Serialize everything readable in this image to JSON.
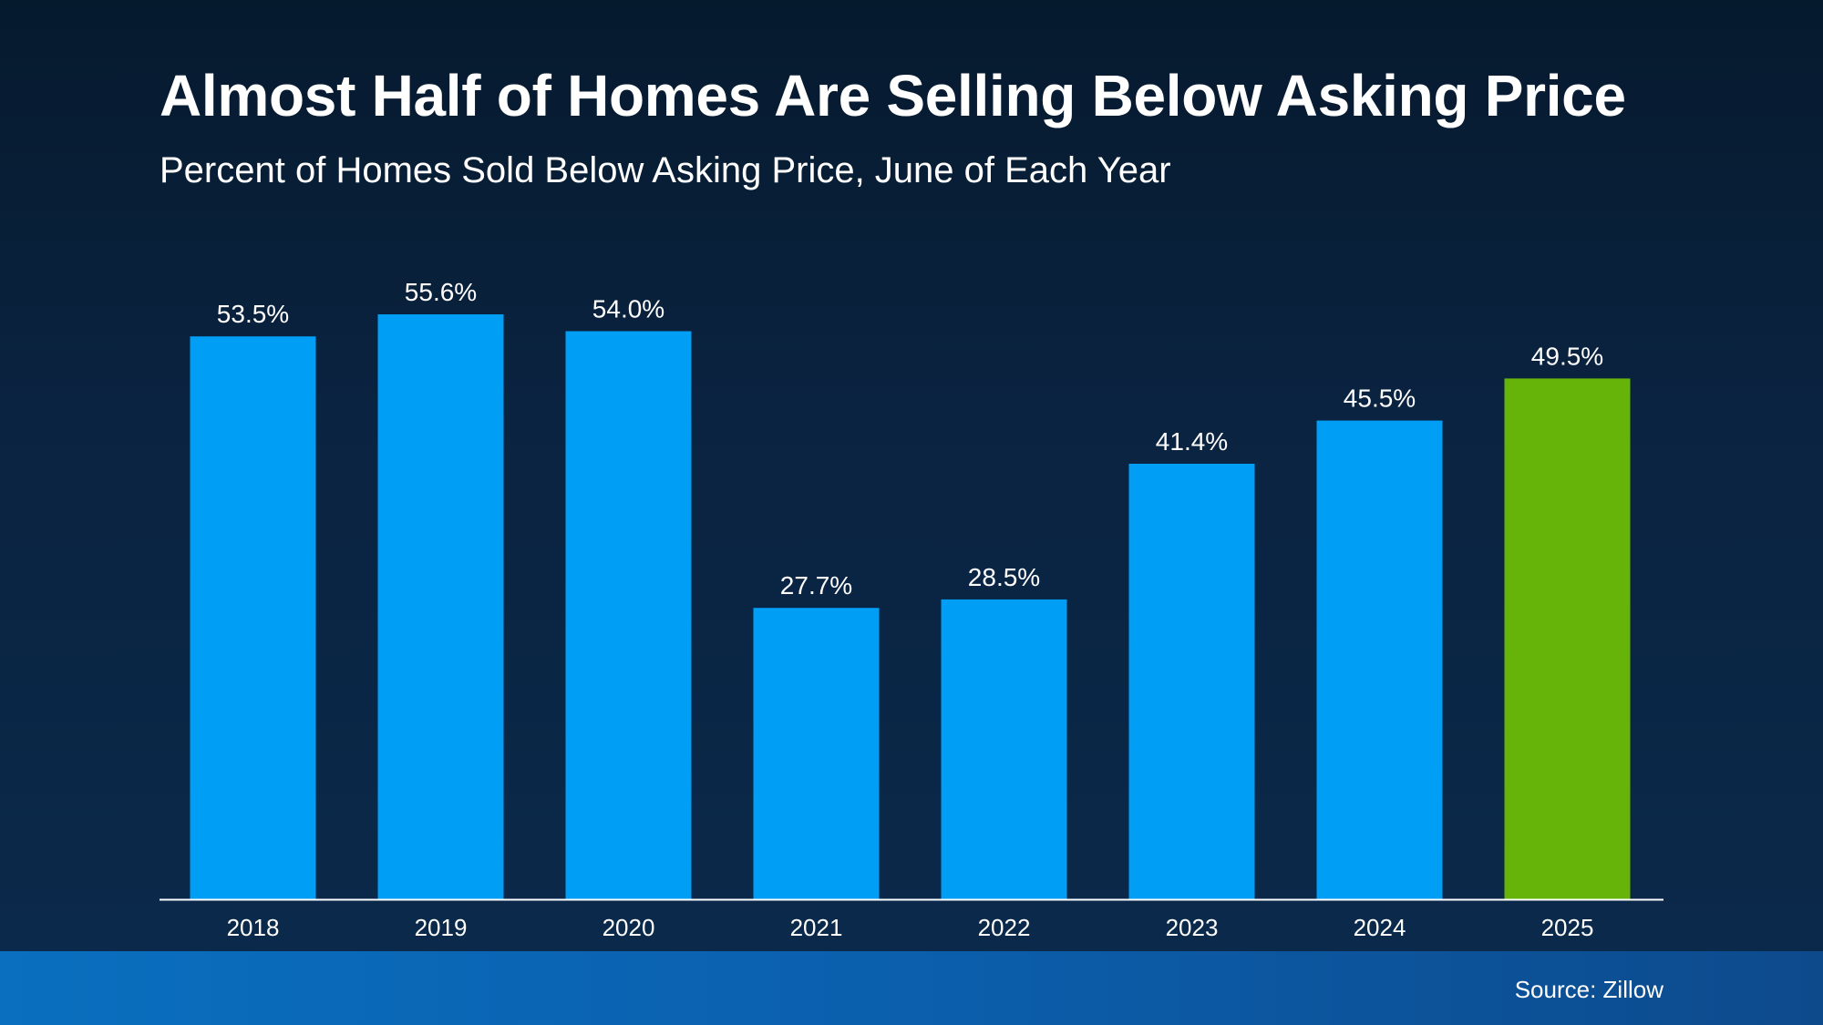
{
  "title": "Almost Half of Homes Are Selling Below Asking Price",
  "subtitle": "Percent of Homes Sold Below Asking Price, June of Each Year",
  "source": "Source: Zillow",
  "colors": {
    "bar": "#009ef5",
    "highlight": "#66b30a",
    "baseline": "#ffffff",
    "text": "#ffffff"
  },
  "chart_data": {
    "type": "bar",
    "title": "Almost Half of Homes Are Selling Below Asking Price",
    "subtitle": "Percent of Homes Sold Below Asking Price, June of Each Year",
    "categories": [
      "2018",
      "2019",
      "2020",
      "2021",
      "2022",
      "2023",
      "2024",
      "2025"
    ],
    "values": [
      53.5,
      55.6,
      54.0,
      27.7,
      28.5,
      41.4,
      45.5,
      49.5
    ],
    "data_labels": [
      "53.5%",
      "55.6%",
      "54.0%",
      "27.7%",
      "28.5%",
      "41.4%",
      "45.5%",
      "49.5%"
    ],
    "highlight_category": "2025",
    "ylim": [
      0,
      55.6
    ],
    "xlabel": "",
    "ylabel": "",
    "grid": false,
    "legend": "none"
  }
}
